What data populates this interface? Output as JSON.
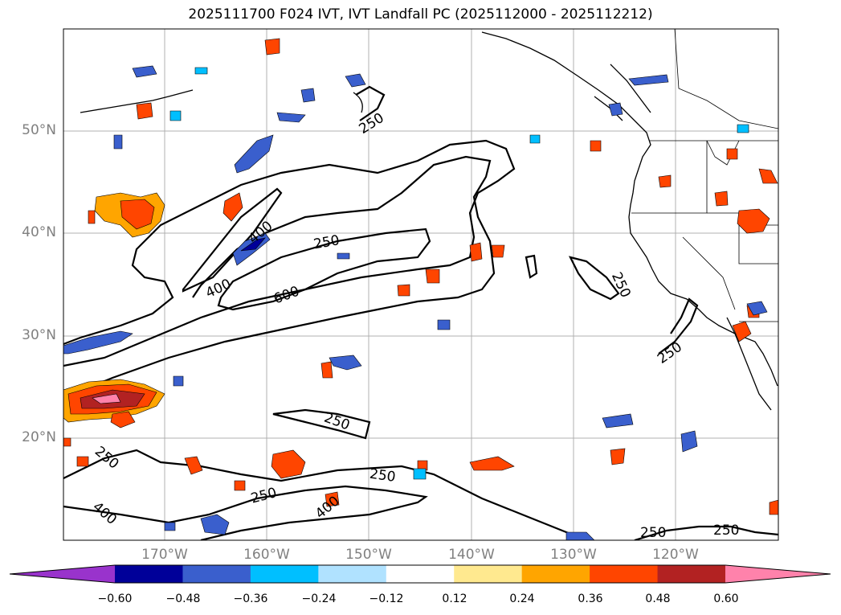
{
  "title": "2025111700 F024 IVT, IVT Landfall PC (2025112000 - 2025112212)",
  "map": {
    "lat_labels": [
      "50°N",
      "40°N",
      "30°N",
      "20°N"
    ],
    "lon_labels": [
      "170°W",
      "160°W",
      "150°W",
      "140°W",
      "130°W",
      "120°W"
    ],
    "contour_labels": [
      "250",
      "400",
      "250",
      "400",
      "600",
      "250",
      "250",
      "250",
      "250",
      "250",
      "400",
      "250",
      "400",
      "250",
      "250"
    ]
  },
  "colorbar": {
    "ticks": [
      "−0.60",
      "−0.48",
      "−0.36",
      "−0.24",
      "−0.12",
      "0.12",
      "0.24",
      "0.36",
      "0.48",
      "0.60"
    ],
    "colors": [
      "#9933cc",
      "#000099",
      "#3a5fcd",
      "#00bfff",
      "#b0e2ff",
      "#ffffff",
      "#ffe98f",
      "#ffa500",
      "#ff4500",
      "#b22222",
      "#ff82ab"
    ]
  }
}
